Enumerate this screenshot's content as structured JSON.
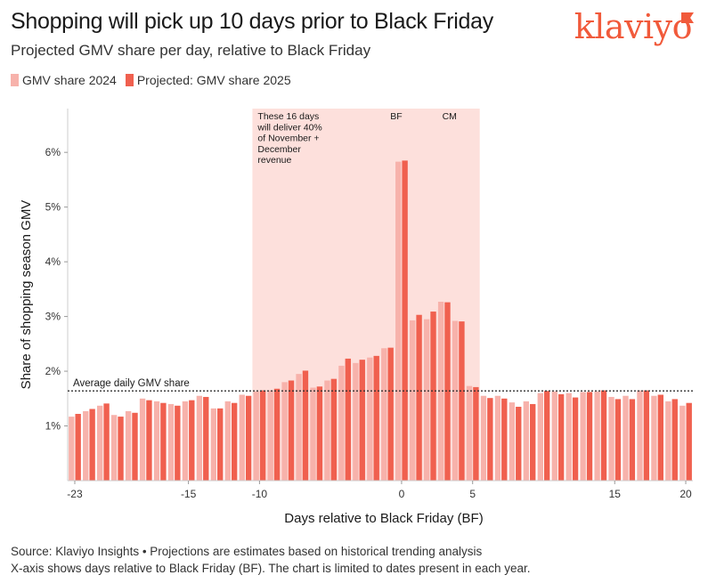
{
  "header": {
    "title": "Shopping will pick up 10 days prior to Black Friday",
    "subtitle": "Projected GMV share per day, relative to Black Friday",
    "logo_text": "klaviyo"
  },
  "footer": {
    "line1": "Source: Klaviyo Insights • Projections are estimates based on historical trending analysis",
    "line2": "X-axis shows days relative to Black Friday (BF). The chart is limited to dates present in each year."
  },
  "colors": {
    "series_2024": "#f7b2ab",
    "series_2025": "#f0604f",
    "highlight_band": "#fde0dc",
    "brand": "#f15a3b"
  },
  "chart_data": {
    "type": "bar",
    "xlabel": "Days relative to Black Friday (BF)",
    "ylabel": "Share of shopping season GMV",
    "ylim": [
      0,
      6.8
    ],
    "y_ticks": [
      1,
      2,
      3,
      4,
      5,
      6
    ],
    "y_tick_labels": [
      "1%",
      "2%",
      "3%",
      "4%",
      "5%",
      "6%"
    ],
    "x_ticks": [
      -23,
      -15,
      -10,
      0,
      5,
      15,
      20
    ],
    "x_tick_labels": [
      "-23",
      "-15",
      "-10",
      "0",
      "5",
      "15",
      "20"
    ],
    "x": [
      -23,
      -22,
      -21,
      -20,
      -19,
      -18,
      -17,
      -16,
      -15,
      -14,
      -13,
      -12,
      -11,
      -10,
      -9,
      -8,
      -7,
      -6,
      -5,
      -4,
      -3,
      -2,
      -1,
      0,
      1,
      2,
      3,
      4,
      5,
      6,
      7,
      8,
      9,
      10,
      11,
      12,
      13,
      14,
      15,
      16,
      17,
      18,
      19,
      20
    ],
    "series": [
      {
        "name": "GMV share 2024",
        "values": [
          1.17,
          1.27,
          1.37,
          1.2,
          1.27,
          1.5,
          1.45,
          1.4,
          1.45,
          1.55,
          1.32,
          1.45,
          1.57,
          1.63,
          1.65,
          1.8,
          1.95,
          1.7,
          1.83,
          2.1,
          2.15,
          2.25,
          2.42,
          5.83,
          2.93,
          2.95,
          3.27,
          2.92,
          1.73,
          1.55,
          1.55,
          1.43,
          1.45,
          1.6,
          1.63,
          1.6,
          1.62,
          1.63,
          1.53,
          1.55,
          1.65,
          1.55,
          1.45,
          1.37
        ]
      },
      {
        "name": "Projected: GMV share 2025",
        "values": [
          1.22,
          1.31,
          1.41,
          1.17,
          1.24,
          1.47,
          1.42,
          1.37,
          1.47,
          1.53,
          1.32,
          1.42,
          1.55,
          1.65,
          1.68,
          1.83,
          2.01,
          1.72,
          1.86,
          2.23,
          2.21,
          2.28,
          2.43,
          5.85,
          3.03,
          3.09,
          3.26,
          2.91,
          1.71,
          1.51,
          1.5,
          1.35,
          1.4,
          1.64,
          1.58,
          1.52,
          1.62,
          1.65,
          1.49,
          1.49,
          1.65,
          1.57,
          1.49,
          1.42
        ]
      }
    ],
    "reference_line": {
      "label": "Average daily GMV share",
      "value": 1.64
    },
    "highlight": {
      "x_start": -10.5,
      "x_end": 5.5
    },
    "annotations": {
      "highlight_text": [
        "These 16 days",
        "will deliver 40%",
        "of November +",
        "December",
        "revenue"
      ],
      "bf_label": "BF",
      "cm_label": "CM",
      "bf_x": 0,
      "cm_x": 3.5
    },
    "grid": false,
    "legend_position": "top-left"
  }
}
